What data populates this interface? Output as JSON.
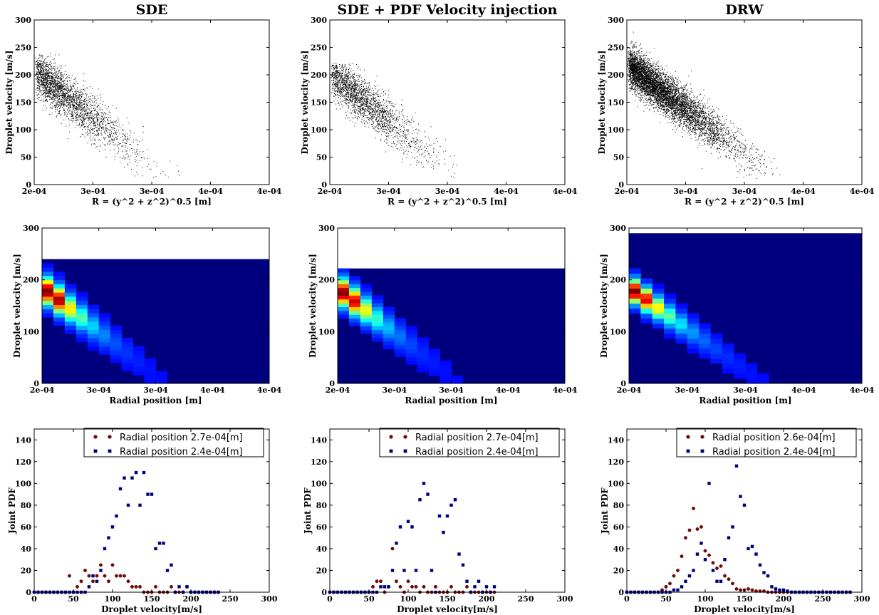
{
  "colors": {
    "red_marker": "#8b0000",
    "blue_marker": "#00007f",
    "heatmap_background": "#00007f",
    "scatter_points": "#000000"
  },
  "chart_data": [
    {
      "type": "scatter",
      "title": "SDE",
      "xlabel": "R = (y^2 + z^2)^0.5 [m]",
      "ylabel": "Droplet velocity [m/s]",
      "xlim": [
        0.0002,
        0.0004
      ],
      "ylim": [
        0,
        300
      ],
      "x_tick_labels": [
        "2e-04",
        "3e-04",
        "3e-04",
        "4e-04",
        "4e-04"
      ],
      "y_tick_labels": [
        "0",
        "50",
        "100",
        "150",
        "200",
        "250",
        "300"
      ],
      "cloud": {
        "x_mean": 0.000225,
        "x_spread": 4e-05,
        "v_core": 165,
        "slope": -1700000,
        "v_spread": 20,
        "v_max": 240,
        "count": 2600
      }
    },
    {
      "type": "scatter",
      "title": "SDE + PDF Velocity injection",
      "xlabel": "R = (y^2 + z^2)^0.5 [m]",
      "ylabel": "Droplet velocity [m/s]",
      "xlim": [
        0.0002,
        0.0004
      ],
      "ylim": [
        0,
        300
      ],
      "x_tick_labels": [
        "2e-04",
        "3e-04",
        "3e-04",
        "4e-04",
        "4e-04"
      ],
      "y_tick_labels": [
        "0",
        "50",
        "100",
        "150",
        "200",
        "250",
        "300"
      ],
      "cloud": {
        "x_mean": 0.000223,
        "x_spread": 4e-05,
        "v_core": 163,
        "slope": -1700000,
        "v_spread": 20,
        "v_max": 222,
        "count": 2200
      }
    },
    {
      "type": "scatter",
      "title": "DRW",
      "xlabel": "R = (y^2 + z^2)^0.5 [m]",
      "ylabel": "Droplet velocity [m/s]",
      "xlim": [
        0.0002,
        0.0004
      ],
      "ylim": [
        0,
        300
      ],
      "x_tick_labels": [
        "2e-04",
        "3e-04",
        "3e-04",
        "4e-04",
        "4e-04"
      ],
      "y_tick_labels": [
        "0",
        "50",
        "100",
        "150",
        "200",
        "250",
        "300"
      ],
      "cloud": {
        "x_mean": 0.00023,
        "x_spread": 4.5e-05,
        "v_core": 170,
        "slope": -1600000,
        "v_spread": 18,
        "v_max": 290,
        "count": 6500
      }
    },
    {
      "type": "heatmap",
      "xlabel": "Radial position [m]",
      "ylabel": "Droplet velocity [m/s]",
      "xlim": [
        0.0002,
        0.0004
      ],
      "ylim": [
        0,
        300
      ],
      "x_tick_labels": [
        "2e-04",
        "3e-04",
        "3e-04",
        "4e-04",
        "4e-04"
      ],
      "y_tick_labels": [
        "0",
        "100",
        "200",
        "300"
      ],
      "v_max": 240,
      "x_bins": 20,
      "v_bins": 30,
      "density_model": {
        "x_peak": 0.000214,
        "v_peak": 163,
        "slope": -1700000,
        "v_width": 17,
        "x_decay": 2.2e-05
      }
    },
    {
      "type": "heatmap",
      "xlabel": "Radial position [m]",
      "ylabel": "Droplet velocity [m/s]",
      "xlim": [
        0.0002,
        0.0004
      ],
      "ylim": [
        0,
        300
      ],
      "x_tick_labels": [
        "2e-04",
        "3e-04",
        "3e-04",
        "4e-04",
        "4e-04"
      ],
      "y_tick_labels": [
        "0",
        "100",
        "200",
        "300"
      ],
      "v_max": 222,
      "x_bins": 20,
      "v_bins": 30,
      "density_model": {
        "x_peak": 0.000213,
        "v_peak": 162,
        "slope": -1700000,
        "v_width": 17,
        "x_decay": 2.1e-05
      }
    },
    {
      "type": "heatmap",
      "xlabel": "Radial position [m]",
      "ylabel": "Droplet velocity [m/s]",
      "xlim": [
        0.0002,
        0.0004
      ],
      "ylim": [
        0,
        300
      ],
      "x_tick_labels": [
        "2e-04",
        "3e-04",
        "3e-04",
        "4e-04",
        "4e-04"
      ],
      "y_tick_labels": [
        "0",
        "100",
        "200",
        "300"
      ],
      "v_max": 290,
      "x_bins": 20,
      "v_bins": 30,
      "density_model": {
        "x_peak": 0.000212,
        "v_peak": 167,
        "slope": -1600000,
        "v_width": 15,
        "x_decay": 2.5e-05
      }
    },
    {
      "type": "scatter",
      "xlabel": "Droplet velocity[m/s]",
      "ylabel": "Joint PDF",
      "xlim": [
        0,
        300
      ],
      "ylim": [
        0,
        150
      ],
      "x_tick_labels": [
        "0",
        "50",
        "100",
        "150",
        "200",
        "250",
        "300"
      ],
      "y_tick_labels": [
        "0",
        "20",
        "40",
        "60",
        "80",
        "100",
        "120",
        "140"
      ],
      "legend_position": "top-right",
      "series": [
        {
          "name": "Radial position 2.7e-04[m]",
          "marker": "circle",
          "x": [
            0,
            5,
            10,
            15,
            20,
            25,
            30,
            35,
            40,
            45,
            50,
            55,
            60,
            65,
            70,
            75,
            80,
            85,
            90,
            95,
            100,
            105,
            110,
            115,
            120,
            125,
            130,
            135,
            140,
            145,
            150,
            155,
            160,
            165,
            170,
            175,
            180,
            185,
            190,
            195,
            200,
            205,
            210,
            215,
            220,
            225,
            230,
            235
          ],
          "y": [
            0,
            0,
            0,
            0,
            0,
            0,
            0,
            0,
            0,
            15,
            0,
            5,
            10,
            20,
            15,
            10,
            15,
            25,
            15,
            10,
            25,
            15,
            15,
            15,
            10,
            5,
            5,
            5,
            0,
            0,
            0,
            5,
            0,
            0,
            0,
            5,
            0,
            0,
            0,
            5,
            0,
            0,
            0,
            0,
            0,
            0,
            0,
            0
          ]
        },
        {
          "name": "Radial position 2.4e-04[m]",
          "marker": "square",
          "x": [
            0,
            5,
            10,
            15,
            20,
            25,
            30,
            35,
            40,
            45,
            50,
            55,
            60,
            65,
            70,
            75,
            80,
            85,
            90,
            95,
            100,
            105,
            110,
            115,
            120,
            125,
            130,
            135,
            140,
            145,
            150,
            155,
            160,
            165,
            170,
            175,
            180,
            185,
            190,
            195,
            200,
            205,
            210,
            215,
            220,
            225,
            230,
            235
          ],
          "y": [
            0,
            0,
            0,
            0,
            0,
            0,
            0,
            0,
            0,
            0,
            0,
            0,
            0,
            0,
            5,
            15,
            10,
            20,
            40,
            50,
            60,
            70,
            95,
            105,
            80,
            105,
            110,
            80,
            110,
            90,
            90,
            40,
            45,
            45,
            20,
            25,
            0,
            5,
            0,
            5,
            0,
            0,
            0,
            0,
            0,
            0,
            0,
            0
          ]
        }
      ]
    },
    {
      "type": "scatter",
      "xlabel": "Droplet velocity[m/s]",
      "ylabel": "Joint PDF",
      "xlim": [
        0,
        300
      ],
      "ylim": [
        0,
        150
      ],
      "x_tick_labels": [
        "0",
        "50",
        "100",
        "150",
        "200",
        "250",
        "300"
      ],
      "y_tick_labels": [
        "0",
        "20",
        "40",
        "60",
        "80",
        "100",
        "120",
        "140"
      ],
      "legend_position": "top-right",
      "series": [
        {
          "name": "Radial position 2.7e-04[m]",
          "marker": "circle",
          "x": [
            0,
            5,
            10,
            15,
            20,
            25,
            30,
            35,
            40,
            45,
            50,
            55,
            60,
            65,
            70,
            75,
            80,
            85,
            90,
            95,
            100,
            105,
            110,
            115,
            120,
            125,
            130,
            135,
            140,
            145,
            150,
            155,
            160,
            165,
            170,
            175,
            180,
            185,
            190,
            195,
            200,
            205,
            210
          ],
          "y": [
            0,
            0,
            0,
            0,
            0,
            0,
            0,
            0,
            0,
            0,
            0,
            5,
            10,
            10,
            0,
            5,
            40,
            10,
            5,
            0,
            10,
            5,
            5,
            0,
            5,
            0,
            0,
            5,
            0,
            0,
            0,
            5,
            0,
            0,
            0,
            5,
            0,
            0,
            0,
            0,
            0,
            0,
            0
          ]
        },
        {
          "name": "Radial position 2.4e-04[m]",
          "marker": "square",
          "x": [
            0,
            5,
            10,
            15,
            20,
            25,
            30,
            35,
            40,
            45,
            50,
            55,
            60,
            65,
            70,
            75,
            80,
            85,
            90,
            95,
            100,
            105,
            110,
            115,
            120,
            125,
            130,
            135,
            140,
            145,
            150,
            155,
            160,
            165,
            170,
            175,
            180,
            185,
            190,
            195,
            200,
            205,
            210
          ],
          "y": [
            0,
            0,
            0,
            0,
            0,
            0,
            0,
            0,
            0,
            0,
            0,
            0,
            0,
            5,
            5,
            5,
            20,
            45,
            60,
            20,
            65,
            60,
            20,
            85,
            100,
            90,
            20,
            0,
            70,
            55,
            70,
            80,
            85,
            35,
            25,
            10,
            0,
            5,
            10,
            0,
            5,
            0,
            5
          ]
        }
      ]
    },
    {
      "type": "scatter",
      "xlabel": "Droplet velocity[m/s]",
      "ylabel": "Joint PDF",
      "xlim": [
        0,
        300
      ],
      "ylim": [
        0,
        150
      ],
      "x_tick_labels": [
        "0",
        "50",
        "100",
        "150",
        "200",
        "250",
        "300"
      ],
      "y_tick_labels": [
        "0",
        "20",
        "40",
        "60",
        "80",
        "100",
        "120",
        "140"
      ],
      "legend_position": "top-right",
      "series": [
        {
          "name": "Radial position 2.6e-04[m]",
          "marker": "circle",
          "x": [
            0,
            5,
            10,
            15,
            20,
            25,
            30,
            35,
            40,
            45,
            50,
            55,
            60,
            65,
            70,
            75,
            80,
            85,
            90,
            95,
            100,
            105,
            110,
            115,
            120,
            125,
            130,
            135,
            140,
            145,
            150,
            155,
            160,
            165,
            170,
            175,
            180,
            185,
            190,
            195,
            200,
            205,
            210,
            215,
            220,
            225,
            230,
            235,
            240,
            245,
            250,
            255,
            260,
            265,
            270,
            275,
            280,
            285
          ],
          "y": [
            0,
            0,
            0,
            0,
            0,
            0,
            0,
            0,
            0,
            2,
            5,
            8,
            15,
            20,
            33,
            50,
            57,
            77,
            58,
            60,
            38,
            34,
            27,
            22,
            24,
            15,
            12,
            8,
            3,
            2,
            2,
            3,
            2,
            1,
            1,
            1,
            0,
            0,
            0,
            0,
            0,
            0,
            0,
            0,
            0,
            0,
            0,
            0,
            0,
            0,
            0,
            0,
            0,
            0,
            0,
            0,
            0,
            0
          ]
        },
        {
          "name": "Radial position 2.4e-04[m]",
          "marker": "square",
          "x": [
            0,
            5,
            10,
            15,
            20,
            25,
            30,
            35,
            40,
            45,
            50,
            55,
            60,
            65,
            70,
            75,
            80,
            85,
            90,
            95,
            100,
            105,
            110,
            115,
            120,
            125,
            130,
            135,
            140,
            145,
            150,
            155,
            160,
            165,
            170,
            175,
            180,
            185,
            190,
            195,
            200,
            205,
            210,
            215,
            220,
            225,
            230,
            235,
            240,
            245,
            250,
            255,
            260,
            265,
            270,
            275,
            280,
            285
          ],
          "y": [
            0,
            0,
            0,
            0,
            0,
            0,
            0,
            0,
            0,
            0,
            0,
            0,
            2,
            2,
            5,
            10,
            15,
            20,
            35,
            45,
            30,
            100,
            20,
            10,
            10,
            30,
            50,
            60,
            116,
            88,
            80,
            40,
            42,
            35,
            25,
            18,
            15,
            5,
            3,
            2,
            2,
            1,
            0,
            0,
            0,
            0,
            0,
            0,
            0,
            0,
            0,
            0,
            0,
            0,
            0,
            0,
            0,
            0
          ]
        }
      ]
    }
  ]
}
